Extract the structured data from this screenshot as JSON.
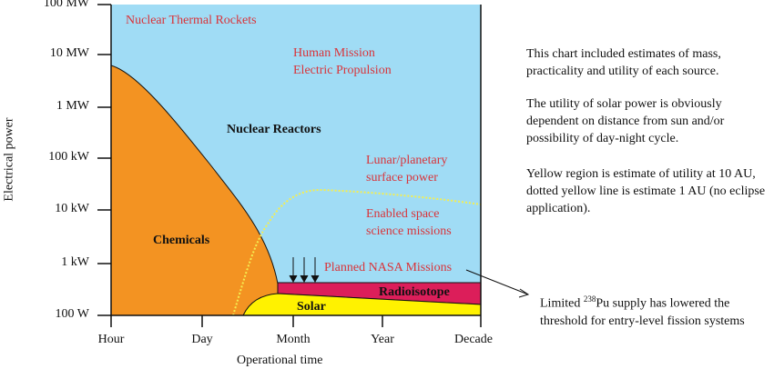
{
  "chart": {
    "y_axis_label": "Electrical power",
    "x_axis_label": "Operational time",
    "y_ticks": [
      "100 MW",
      "10 MW",
      "1 MW",
      "100 kW",
      "10 kW",
      "1 kW",
      "100 W"
    ],
    "x_ticks": [
      "Hour",
      "Day",
      "Month",
      "Year",
      "Decade"
    ],
    "regions": {
      "nuclear_thermal": "Nuclear Thermal Rockets",
      "human_mission_1": "Human Mission",
      "human_mission_2": "Electric Propulsion",
      "nuclear_reactors": "Nuclear Reactors",
      "lunar_1": "Lunar/planetary",
      "lunar_2": "surface power",
      "enabled_1": "Enabled space",
      "enabled_2": "science missions",
      "chemicals": "Chemicals",
      "planned": "Planned NASA Missions",
      "radioisotope": "Radioisotope",
      "solar": "Solar"
    },
    "colors": {
      "reactor": "#a0dcf5",
      "chemical": "#f39322",
      "radioisotope": "#dc1e5a",
      "solar": "#fff200",
      "label_red": "#d9343a"
    }
  },
  "notes": {
    "p1": "This chart included estimates of mass, practicality and utility of each source.",
    "p2": "The utility of solar power is obviously dependent on distance from sun and/or possibility of day-night cycle.",
    "p3": "Yellow region is estimate of utility at 10 AU, dotted yellow line is estimate 1 AU (no eclipse application).",
    "pu_pre": "Limited ",
    "pu_sup": "238",
    "pu_line1": "Pu supply has lowered the",
    "pu_line2": "threshold for entry-level fission systems"
  }
}
